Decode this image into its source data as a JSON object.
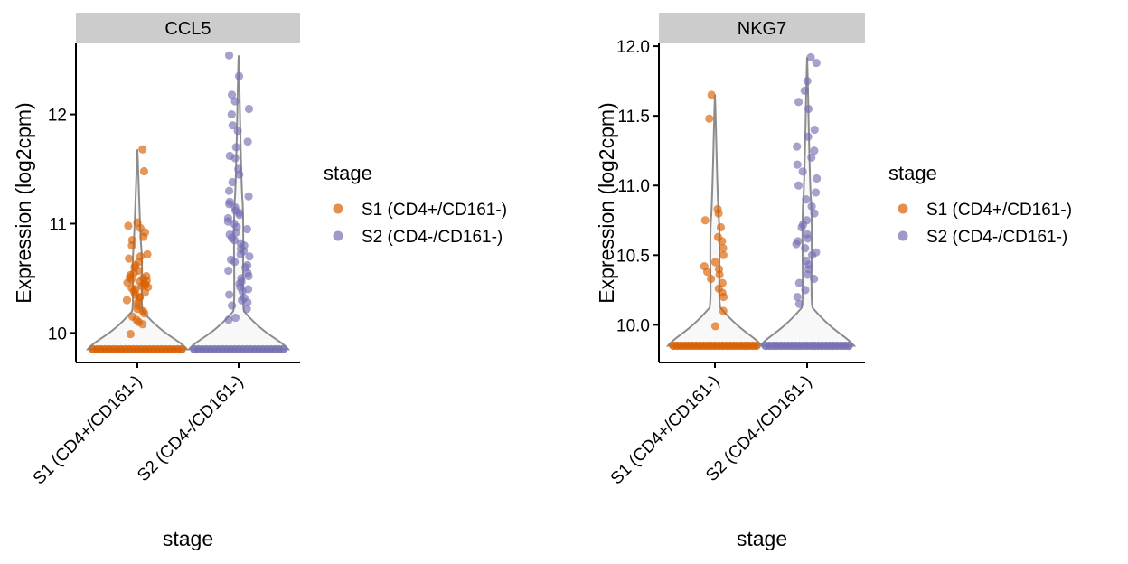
{
  "chart_data": [
    {
      "type": "violin",
      "facet_title": "CCL5",
      "xlabel": "stage",
      "ylabel": "Expression (log2cpm)",
      "categories": [
        "S1 (CD4+/CD161-)",
        "S2 (CD4-/CD161-)"
      ],
      "ylim": [
        9.73,
        12.65
      ],
      "yticks": [
        10,
        11,
        12
      ],
      "floor": 9.85,
      "groups": [
        {
          "name": "S1 (CD4+/CD161-)",
          "values": [
            9.99,
            10.08,
            10.1,
            10.12,
            10.15,
            10.18,
            10.2,
            10.22,
            10.25,
            10.28,
            10.3,
            10.32,
            10.33,
            10.35,
            10.37,
            10.38,
            10.4,
            10.41,
            10.42,
            10.43,
            10.44,
            10.45,
            10.46,
            10.47,
            10.48,
            10.49,
            10.5,
            10.51,
            10.52,
            10.53,
            10.55,
            10.57,
            10.6,
            10.62,
            10.65,
            10.68,
            10.7,
            10.72,
            10.8,
            10.85,
            10.88,
            10.92,
            10.96,
            10.98,
            11.01,
            11.48,
            11.68
          ]
        },
        {
          "name": "S2 (CD4-/CD161-)",
          "values": [
            10.12,
            10.14,
            10.22,
            10.25,
            10.28,
            10.3,
            10.32,
            10.35,
            10.38,
            10.4,
            10.42,
            10.45,
            10.47,
            10.5,
            10.52,
            10.55,
            10.57,
            10.6,
            10.62,
            10.65,
            10.67,
            10.7,
            10.72,
            10.75,
            10.77,
            10.8,
            10.82,
            10.85,
            10.87,
            10.9,
            10.92,
            10.95,
            10.97,
            11.0,
            11.02,
            11.05,
            11.08,
            11.1,
            11.12,
            11.15,
            11.18,
            11.2,
            11.25,
            11.3,
            11.38,
            11.45,
            11.5,
            11.6,
            11.62,
            11.7,
            11.75,
            11.85,
            11.9,
            12.0,
            12.05,
            12.12,
            12.18,
            12.35,
            12.54
          ]
        }
      ]
    },
    {
      "type": "violin",
      "facet_title": "NKG7",
      "xlabel": "stage",
      "ylabel": "Expression (log2cpm)",
      "categories": [
        "S1 (CD4+/CD161-)",
        "S2 (CD4-/CD161-)"
      ],
      "ylim": [
        9.73,
        12.02
      ],
      "yticks": [
        10.0,
        10.5,
        11.0,
        11.5,
        12.0
      ],
      "floor": 9.85,
      "groups": [
        {
          "name": "S1 (CD4+/CD161-)",
          "values": [
            9.99,
            10.1,
            10.2,
            10.23,
            10.26,
            10.3,
            10.33,
            10.36,
            10.38,
            10.4,
            10.42,
            10.45,
            10.5,
            10.55,
            10.6,
            10.63,
            10.7,
            10.75,
            10.8,
            10.83,
            11.48,
            11.65
          ]
        },
        {
          "name": "S2 (CD4-/CD161-)",
          "values": [
            10.15,
            10.2,
            10.25,
            10.3,
            10.33,
            10.36,
            10.4,
            10.43,
            10.46,
            10.5,
            10.52,
            10.55,
            10.58,
            10.6,
            10.62,
            10.65,
            10.7,
            10.72,
            10.75,
            10.8,
            10.85,
            10.9,
            10.95,
            11.0,
            11.05,
            11.1,
            11.15,
            11.2,
            11.25,
            11.28,
            11.35,
            11.4,
            11.55,
            11.6,
            11.68,
            11.75,
            11.88,
            11.92
          ]
        }
      ]
    }
  ],
  "legend": {
    "title": "stage",
    "entries": [
      {
        "label": "S1 (CD4+/CD161-)",
        "color": "#d95f02"
      },
      {
        "label": "S2 (CD4-/CD161-)",
        "color": "#7570b3"
      }
    ]
  },
  "style": {
    "strip_fill": "#cccccc",
    "violin_stroke": "#8c8c8c",
    "violin_fill": "#f8f8f8"
  }
}
